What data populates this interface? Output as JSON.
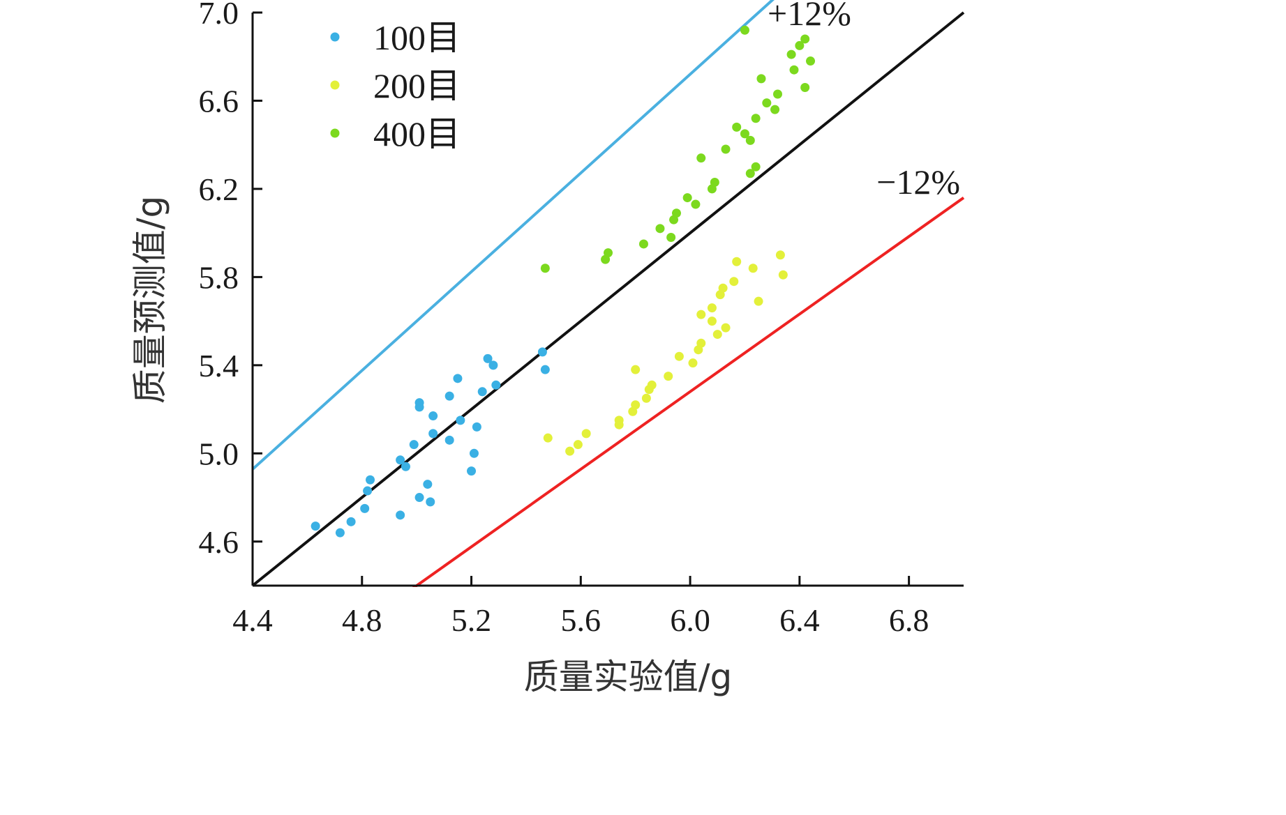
{
  "chart_data": {
    "type": "scatter",
    "xlabel": "质量实验值/g",
    "ylabel": "质量预测值/g",
    "xlim": [
      4.4,
      7.0
    ],
    "ylim": [
      4.4,
      7.0
    ],
    "x_ticks": [
      "4.4",
      "4.8",
      "5.2",
      "5.6",
      "6.0",
      "6.4",
      "6.8"
    ],
    "x_tick_values": [
      4.4,
      4.8,
      5.2,
      5.6,
      6.0,
      6.4,
      6.8
    ],
    "y_ticks": [
      "4.6",
      "5.0",
      "5.4",
      "5.8",
      "6.2",
      "6.6",
      "7.0"
    ],
    "y_tick_values": [
      4.6,
      5.0,
      5.4,
      5.8,
      6.2,
      6.6,
      7.0
    ],
    "grid": false,
    "legend_position": "top-left",
    "series": [
      {
        "name": "100目",
        "color": "#3ab0e4",
        "points": [
          [
            4.63,
            4.67
          ],
          [
            4.72,
            4.64
          ],
          [
            4.76,
            4.69
          ],
          [
            4.81,
            4.75
          ],
          [
            4.82,
            4.83
          ],
          [
            4.83,
            4.88
          ],
          [
            4.94,
            4.72
          ],
          [
            4.94,
            4.97
          ],
          [
            4.96,
            4.94
          ],
          [
            4.99,
            5.04
          ],
          [
            5.01,
            4.8
          ],
          [
            5.01,
            5.21
          ],
          [
            5.01,
            5.23
          ],
          [
            5.04,
            4.86
          ],
          [
            5.05,
            4.78
          ],
          [
            5.06,
            5.17
          ],
          [
            5.06,
            5.09
          ],
          [
            5.12,
            5.26
          ],
          [
            5.12,
            5.06
          ],
          [
            5.15,
            5.34
          ],
          [
            5.16,
            5.15
          ],
          [
            5.2,
            4.92
          ],
          [
            5.21,
            5.0
          ],
          [
            5.22,
            5.12
          ],
          [
            5.24,
            5.28
          ],
          [
            5.26,
            5.43
          ],
          [
            5.28,
            5.4
          ],
          [
            5.29,
            5.31
          ],
          [
            5.46,
            5.46
          ],
          [
            5.47,
            5.38
          ]
        ]
      },
      {
        "name": "200目",
        "color": "#e3f03a",
        "points": [
          [
            5.48,
            5.07
          ],
          [
            5.56,
            5.01
          ],
          [
            5.59,
            5.04
          ],
          [
            5.62,
            5.09
          ],
          [
            5.74,
            5.15
          ],
          [
            5.74,
            5.13
          ],
          [
            5.79,
            5.19
          ],
          [
            5.8,
            5.22
          ],
          [
            5.8,
            5.38
          ],
          [
            5.84,
            5.25
          ],
          [
            5.85,
            5.29
          ],
          [
            5.86,
            5.31
          ],
          [
            5.92,
            5.35
          ],
          [
            5.96,
            5.44
          ],
          [
            6.01,
            5.41
          ],
          [
            6.03,
            5.47
          ],
          [
            6.04,
            5.5
          ],
          [
            6.04,
            5.63
          ],
          [
            6.08,
            5.6
          ],
          [
            6.08,
            5.66
          ],
          [
            6.1,
            5.54
          ],
          [
            6.11,
            5.72
          ],
          [
            6.12,
            5.75
          ],
          [
            6.13,
            5.57
          ],
          [
            6.16,
            5.78
          ],
          [
            6.17,
            5.87
          ],
          [
            6.23,
            5.84
          ],
          [
            6.25,
            5.69
          ],
          [
            6.33,
            5.9
          ],
          [
            6.34,
            5.81
          ]
        ]
      },
      {
        "name": "400目",
        "color": "#7cd91e",
        "points": [
          [
            5.47,
            5.84
          ],
          [
            5.69,
            5.88
          ],
          [
            5.7,
            5.91
          ],
          [
            5.83,
            5.95
          ],
          [
            5.89,
            6.02
          ],
          [
            5.93,
            5.98
          ],
          [
            5.94,
            6.06
          ],
          [
            5.95,
            6.09
          ],
          [
            5.99,
            6.16
          ],
          [
            6.02,
            6.13
          ],
          [
            6.04,
            6.34
          ],
          [
            6.08,
            6.2
          ],
          [
            6.09,
            6.23
          ],
          [
            6.13,
            6.38
          ],
          [
            6.17,
            6.48
          ],
          [
            6.2,
            6.45
          ],
          [
            6.22,
            6.42
          ],
          [
            6.22,
            6.27
          ],
          [
            6.24,
            6.3
          ],
          [
            6.24,
            6.52
          ],
          [
            6.26,
            6.7
          ],
          [
            6.28,
            6.59
          ],
          [
            6.31,
            6.56
          ],
          [
            6.32,
            6.63
          ],
          [
            6.37,
            6.81
          ],
          [
            6.38,
            6.74
          ],
          [
            6.4,
            6.85
          ],
          [
            6.42,
            6.66
          ],
          [
            6.42,
            6.88
          ],
          [
            6.44,
            6.78
          ],
          [
            6.2,
            6.92
          ]
        ]
      }
    ],
    "reference_lines": [
      {
        "label": "+12%",
        "factor": 1.12,
        "color": "#4ab0e0"
      },
      {
        "label": "",
        "factor": 1.0,
        "color": "#111111"
      },
      {
        "label": "−12%",
        "factor": 0.88,
        "color": "#ee2222"
      }
    ]
  }
}
